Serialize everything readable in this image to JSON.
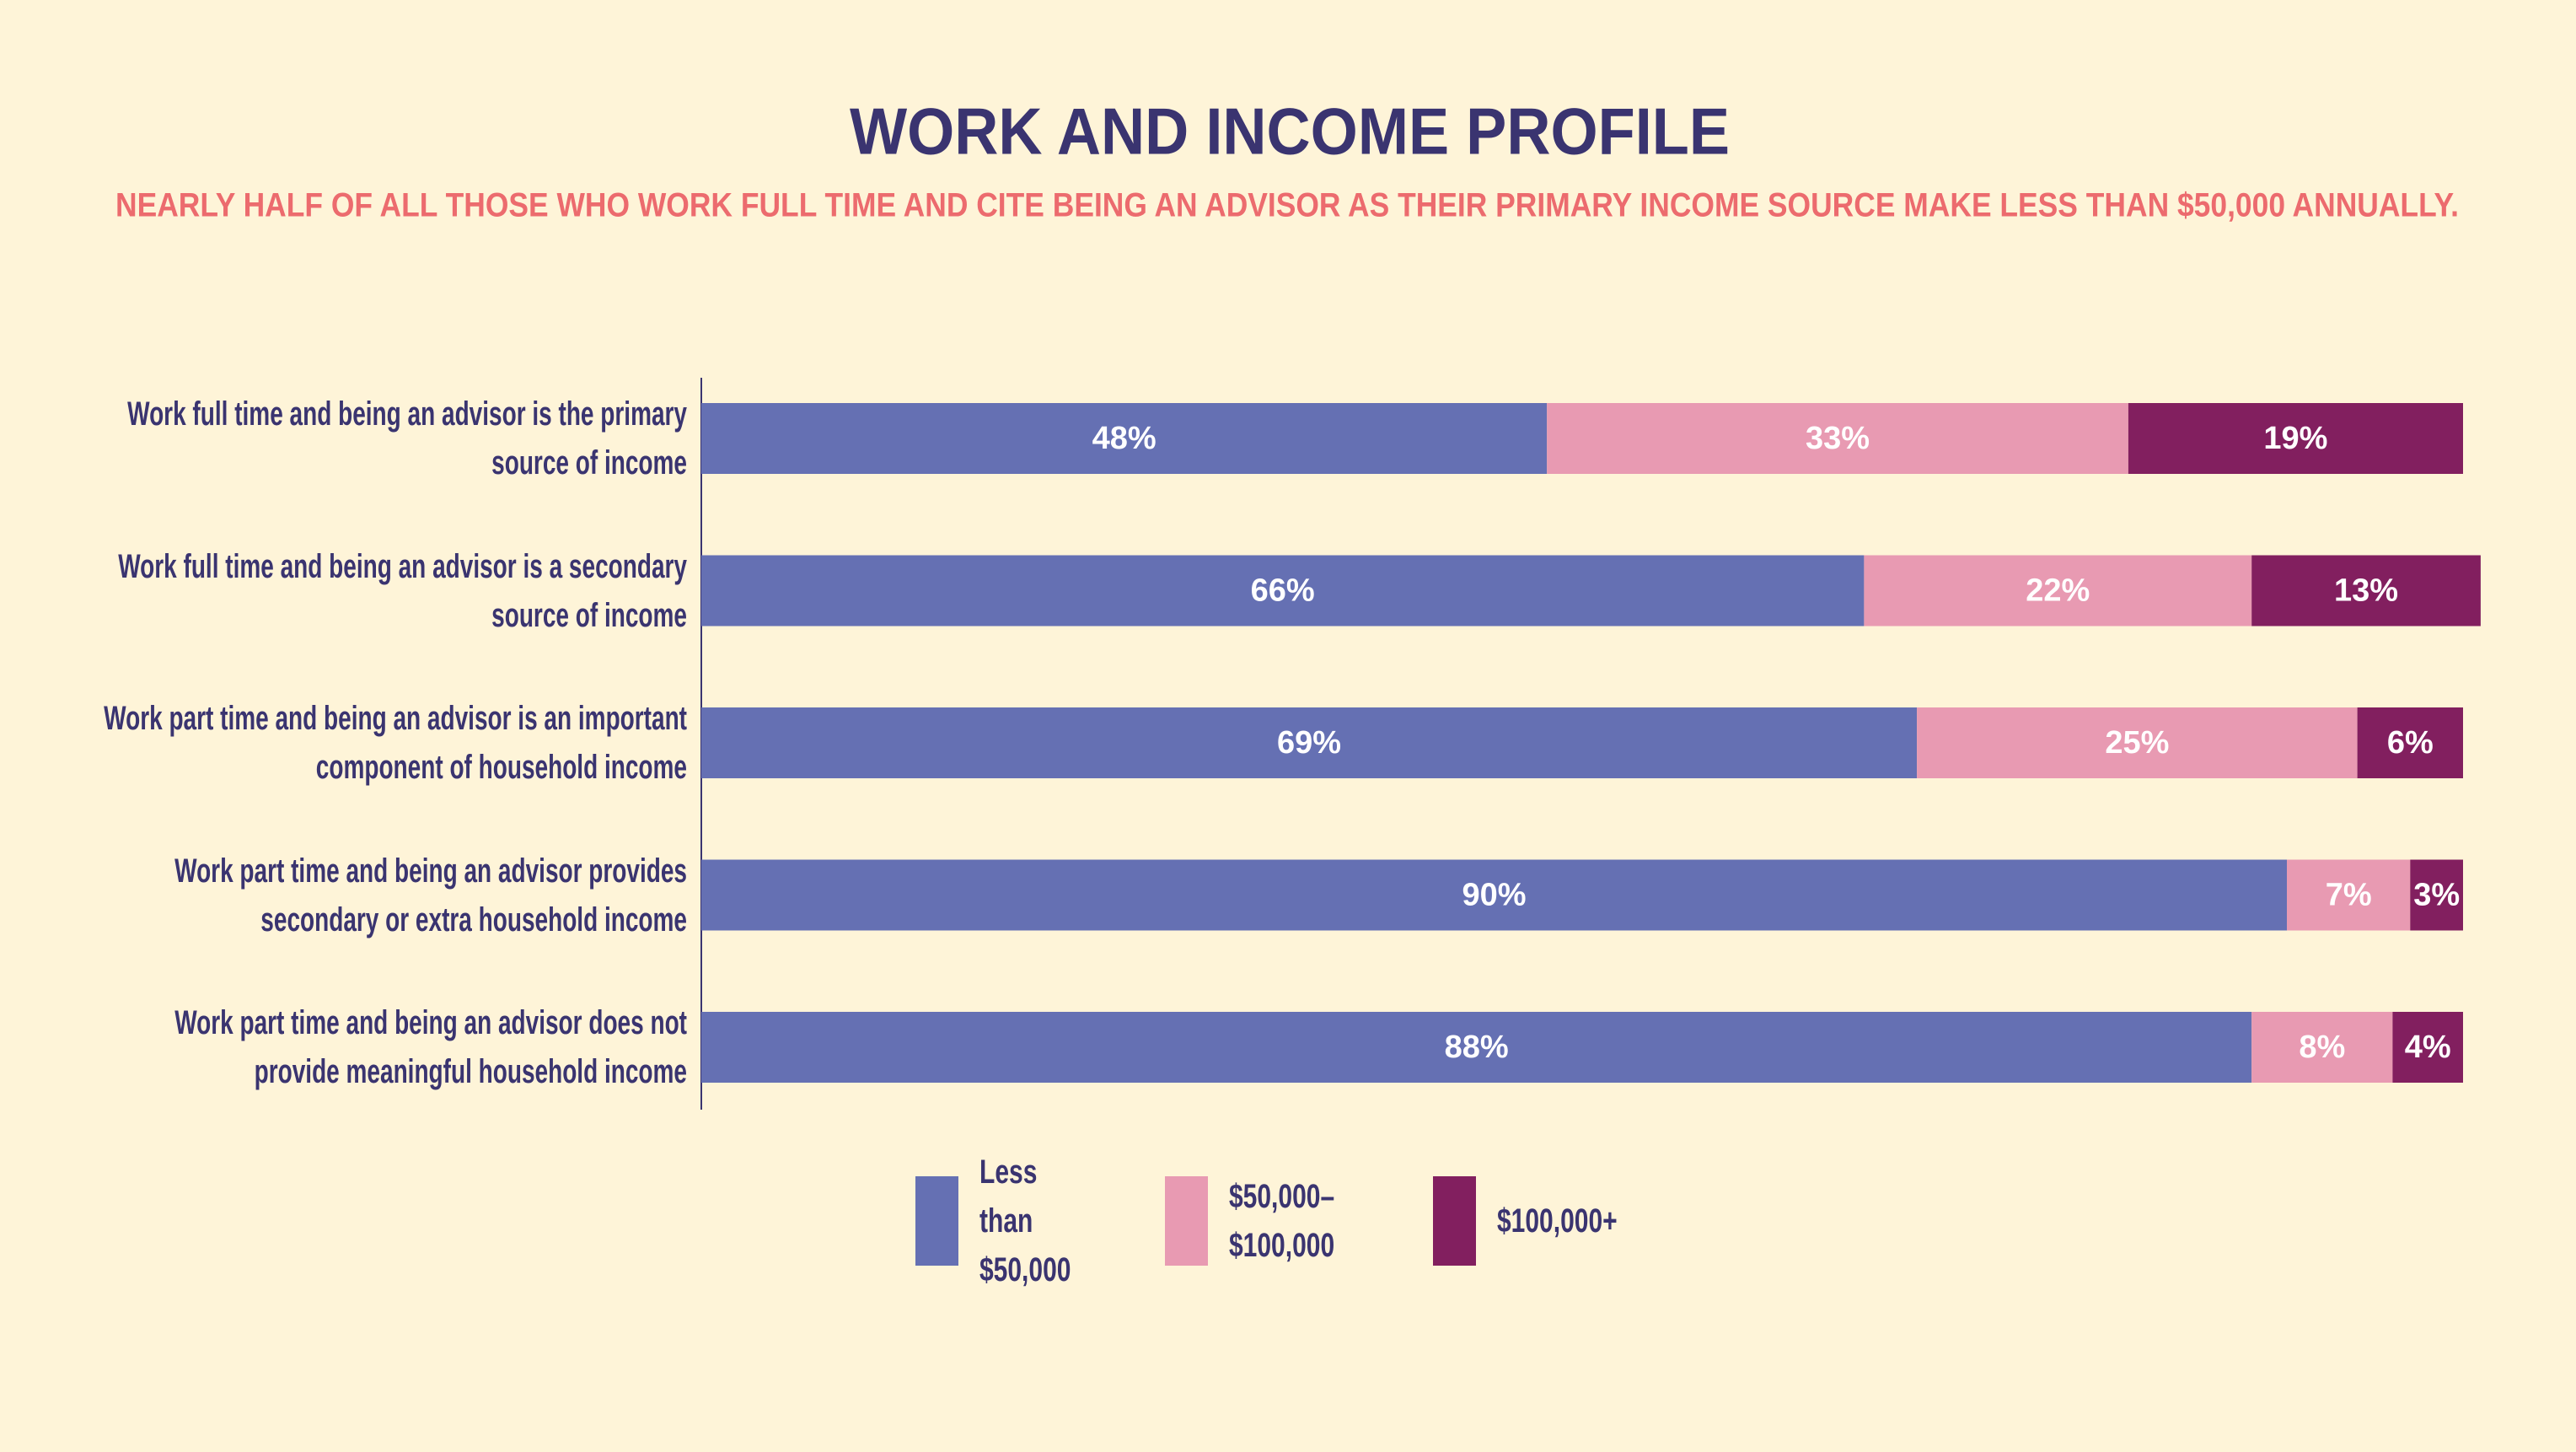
{
  "chart_data": {
    "type": "stacked-bar-horizontal",
    "title": "WORK AND INCOME PROFILE",
    "subtitle": "NEARLY HALF OF ALL THOSE WHO WORK FULL TIME AND CITE BEING AN ADVISOR AS THEIR PRIMARY INCOME SOURCE MAKE LESS THAN $50,000 ANNUALLY.",
    "categories": [
      "Work full time and being an advisor is the primary source of income",
      "Work full time and being an advisor is a secondary source of income",
      "Work part time and being an advisor is an important component of household income",
      "Work part time and being an advisor provides secondary or extra household income",
      "Work part time and being an advisor does not provide meaningful household income"
    ],
    "series": [
      {
        "name": "Less than $50,000",
        "color": "#6570b3",
        "values": [
          48,
          66,
          69,
          90,
          88
        ],
        "value_labels": [
          "48%",
          "66%",
          "69%",
          "90%",
          "88%"
        ]
      },
      {
        "name": "$50,000–$100,000",
        "color": "#e89ab2",
        "values": [
          33,
          22,
          25,
          7,
          8
        ],
        "value_labels": [
          "33%",
          "22%",
          "25%",
          "7%",
          "8%"
        ]
      },
      {
        "name": "$100,000+",
        "color": "#821f5f",
        "values": [
          19,
          13,
          6,
          3,
          4
        ],
        "value_labels": [
          "19%",
          "13%",
          "6%",
          "3%",
          "4%"
        ]
      }
    ],
    "xlim": [
      0,
      100
    ]
  }
}
